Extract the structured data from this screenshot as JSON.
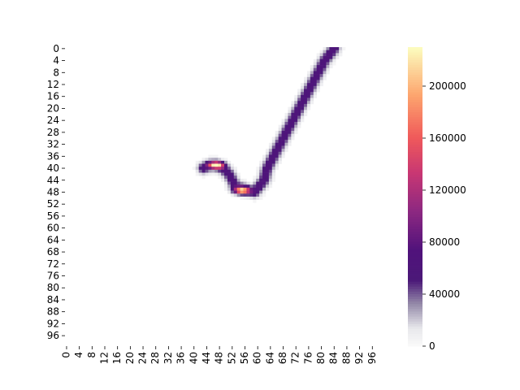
{
  "chart_data": {
    "type": "heatmap",
    "title": "",
    "xlabel": "",
    "ylabel": "",
    "rows": 100,
    "cols": 100,
    "x_tick_labels": [
      "0",
      "4",
      "8",
      "12",
      "16",
      "20",
      "24",
      "28",
      "32",
      "36",
      "40",
      "44",
      "48",
      "52",
      "56",
      "60",
      "64",
      "68",
      "72",
      "76",
      "80",
      "84",
      "88",
      "92",
      "96"
    ],
    "y_tick_labels": [
      "0",
      "4",
      "8",
      "12",
      "16",
      "20",
      "24",
      "28",
      "32",
      "36",
      "40",
      "44",
      "48",
      "52",
      "56",
      "60",
      "64",
      "68",
      "72",
      "76",
      "80",
      "84",
      "88",
      "92",
      "96"
    ],
    "colorbar": {
      "min": 0,
      "max": 230000,
      "ticks": [
        0,
        40000,
        80000,
        120000,
        160000,
        200000
      ],
      "tick_labels": [
        "0",
        "40000",
        "80000",
        "120000",
        "160000",
        "200000"
      ],
      "colormap": "magma_r"
    },
    "stroke_path": [
      [
        0,
        84
      ],
      [
        4,
        81
      ],
      [
        8,
        79
      ],
      [
        12,
        77
      ],
      [
        16,
        75
      ],
      [
        20,
        73
      ],
      [
        24,
        71
      ],
      [
        28,
        69
      ],
      [
        32,
        67
      ],
      [
        36,
        65
      ],
      [
        40,
        63
      ],
      [
        44,
        62
      ],
      [
        48,
        59
      ],
      [
        47,
        56
      ],
      [
        46,
        53
      ],
      [
        42,
        51
      ],
      [
        40,
        49
      ],
      [
        39,
        47
      ],
      [
        39,
        45
      ],
      [
        40,
        43
      ]
    ],
    "stroke_core_value": 70000,
    "hotspots": [
      {
        "row": 39,
        "col": 47,
        "value": 230000
      },
      {
        "row": 47.5,
        "col": 55,
        "value": 220000
      }
    ]
  }
}
